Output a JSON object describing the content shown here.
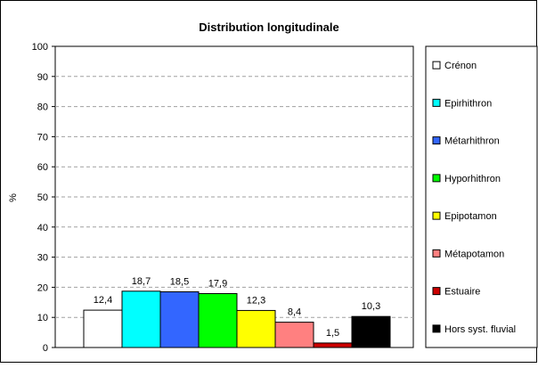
{
  "chart_data": {
    "type": "bar",
    "title": "Distribution longitudinale",
    "ylabel": "%",
    "xlabel": "",
    "ylim": [
      0,
      100
    ],
    "yticks": [
      0,
      10,
      20,
      30,
      40,
      50,
      60,
      70,
      80,
      90,
      100
    ],
    "grid": "horizontal dashed",
    "legend_position": "right",
    "series": [
      {
        "name": "Crénon",
        "value": 12.4,
        "label": "12,4",
        "color": "#ffffff"
      },
      {
        "name": "Epirhithron",
        "value": 18.7,
        "label": "18,7",
        "color": "#00ffff"
      },
      {
        "name": "Métarhithron",
        "value": 18.5,
        "label": "18,5",
        "color": "#3366ff"
      },
      {
        "name": "Hyporhithron",
        "value": 17.9,
        "label": "17,9",
        "color": "#00ff00"
      },
      {
        "name": "Epipotamon",
        "value": 12.3,
        "label": "12,3",
        "color": "#ffff00"
      },
      {
        "name": "Métapotamon",
        "value": 8.4,
        "label": "8,4",
        "color": "#ff8080"
      },
      {
        "name": "Estuaire",
        "value": 1.5,
        "label": "1,5",
        "color": "#cc0000"
      },
      {
        "name": "Hors syst. fluvial",
        "value": 10.3,
        "label": "10,3",
        "color": "#000000"
      }
    ]
  }
}
